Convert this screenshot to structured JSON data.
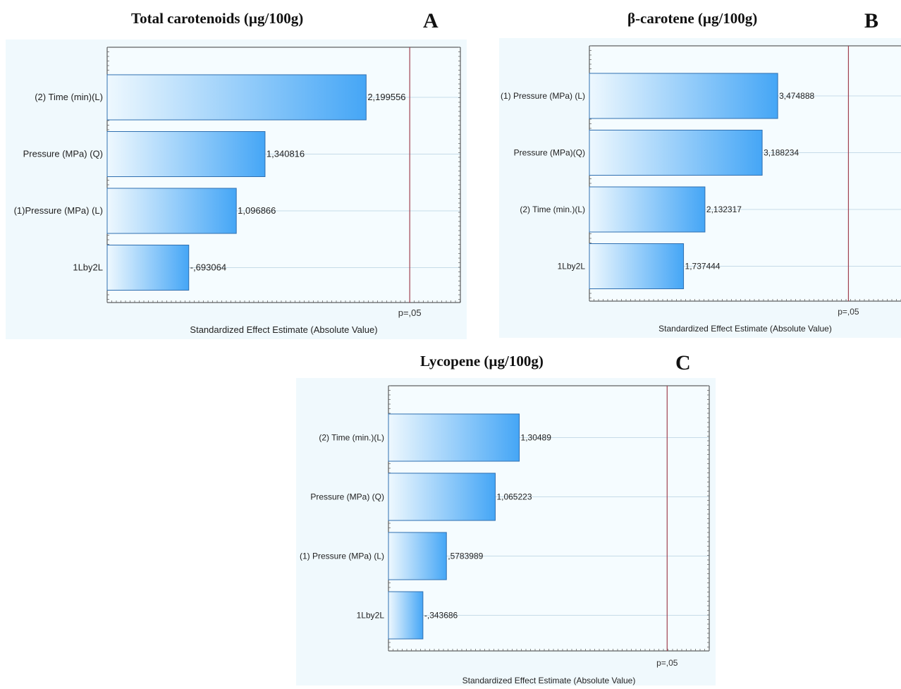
{
  "colors": {
    "bar_light": "#eef8fe",
    "bar_dark": "#45a6f6",
    "bar_stroke": "#2f6fb0",
    "ref_line": "#a04050",
    "panel_bg": "#f0f9fd",
    "plot_bg": "#f5fcff",
    "grid": "#c6dbe8"
  },
  "chart_data": [
    {
      "type": "bar",
      "orientation": "horizontal",
      "title": "Total carotenoids  (µg/100g)",
      "panel_letter": "A",
      "categories": [
        "(2) Time   (min)(L)",
        "Pressure (MPa) (Q)",
        "(1)Pressure (MPa) (L)",
        "1Lby2L"
      ],
      "values": [
        2.199556,
        1.340816,
        1.096866,
        0.693064
      ],
      "value_labels": [
        "2,199556",
        "1,340816",
        "1,096866",
        "-,693064"
      ],
      "reference_line": {
        "label": "p=,05",
        "value": 2.57
      },
      "xlabel": "Standardized Effect Estimate (Absolute Value)",
      "xlim": [
        0,
        3.0
      ]
    },
    {
      "type": "bar",
      "orientation": "horizontal",
      "title": "β-carotene (µg/100g)",
      "panel_letter": "B",
      "categories": [
        "(1) Pressure (MPa) (L)",
        "Pressure (MPa)(Q)",
        "(2)  Time  (min.)(L)",
        "1Lby2L"
      ],
      "values": [
        3.474888,
        3.188234,
        2.132317,
        1.737444
      ],
      "value_labels": [
        "3,474888",
        "3,188234",
        "2,132317",
        "1,737444"
      ],
      "reference_line": {
        "label": "p=,05",
        "value": 4.78
      },
      "xlabel": "Standardized Effect Estimate (Absolute Value)",
      "xlim": [
        0,
        5.75
      ]
    },
    {
      "type": "bar",
      "orientation": "horizontal",
      "title": "Lycopene (µg/100g)",
      "panel_letter": "C",
      "categories": [
        "(2)  Time  (min.)(L)",
        "Pressure (MPa) (Q)",
        "(1) Pressure (MPa) (L)",
        "1Lby2L"
      ],
      "values": [
        1.30489,
        1.065223,
        0.5783989,
        0.343686
      ],
      "value_labels": [
        "1,30489",
        "1,065223",
        ",5783989",
        "-,343686"
      ],
      "reference_line": {
        "label": "p=,05",
        "value": 2.78
      },
      "xlabel": "Standardized Effect Estimate (Absolute Value)",
      "xlim": [
        0,
        3.2
      ]
    }
  ]
}
